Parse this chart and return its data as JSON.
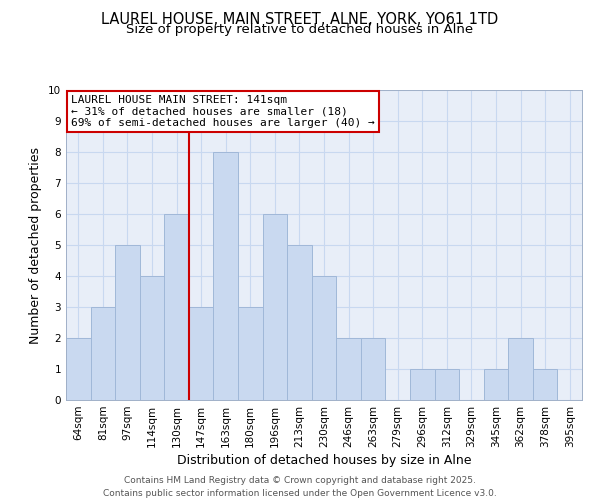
{
  "title": "LAUREL HOUSE, MAIN STREET, ALNE, YORK, YO61 1TD",
  "subtitle": "Size of property relative to detached houses in Alne",
  "xlabel": "Distribution of detached houses by size in Alne",
  "ylabel": "Number of detached properties",
  "bin_labels": [
    "64sqm",
    "81sqm",
    "97sqm",
    "114sqm",
    "130sqm",
    "147sqm",
    "163sqm",
    "180sqm",
    "196sqm",
    "213sqm",
    "230sqm",
    "246sqm",
    "263sqm",
    "279sqm",
    "296sqm",
    "312sqm",
    "329sqm",
    "345sqm",
    "362sqm",
    "378sqm",
    "395sqm"
  ],
  "bin_counts": [
    2,
    3,
    5,
    4,
    6,
    3,
    8,
    3,
    6,
    5,
    4,
    2,
    2,
    0,
    1,
    1,
    0,
    1,
    2,
    1,
    0
  ],
  "bar_color": "#c9d9f0",
  "bar_edge_color": "#a0b8d8",
  "highlight_index": 5,
  "highlight_line_color": "#cc0000",
  "annotation_title": "LAUREL HOUSE MAIN STREET: 141sqm",
  "annotation_line1": "← 31% of detached houses are smaller (18)",
  "annotation_line2": "69% of semi-detached houses are larger (40) →",
  "annotation_box_color": "#ffffff",
  "annotation_box_edge": "#cc0000",
  "ylim": [
    0,
    10
  ],
  "yticks": [
    0,
    1,
    2,
    3,
    4,
    5,
    6,
    7,
    8,
    9,
    10
  ],
  "grid_color": "#c8d8f0",
  "footer_line1": "Contains HM Land Registry data © Crown copyright and database right 2025.",
  "footer_line2": "Contains public sector information licensed under the Open Government Licence v3.0.",
  "title_fontsize": 10.5,
  "subtitle_fontsize": 9.5,
  "axis_label_fontsize": 9,
  "tick_fontsize": 7.5,
  "annotation_fontsize": 8,
  "footer_fontsize": 6.5,
  "bg_color": "#e8eef8"
}
